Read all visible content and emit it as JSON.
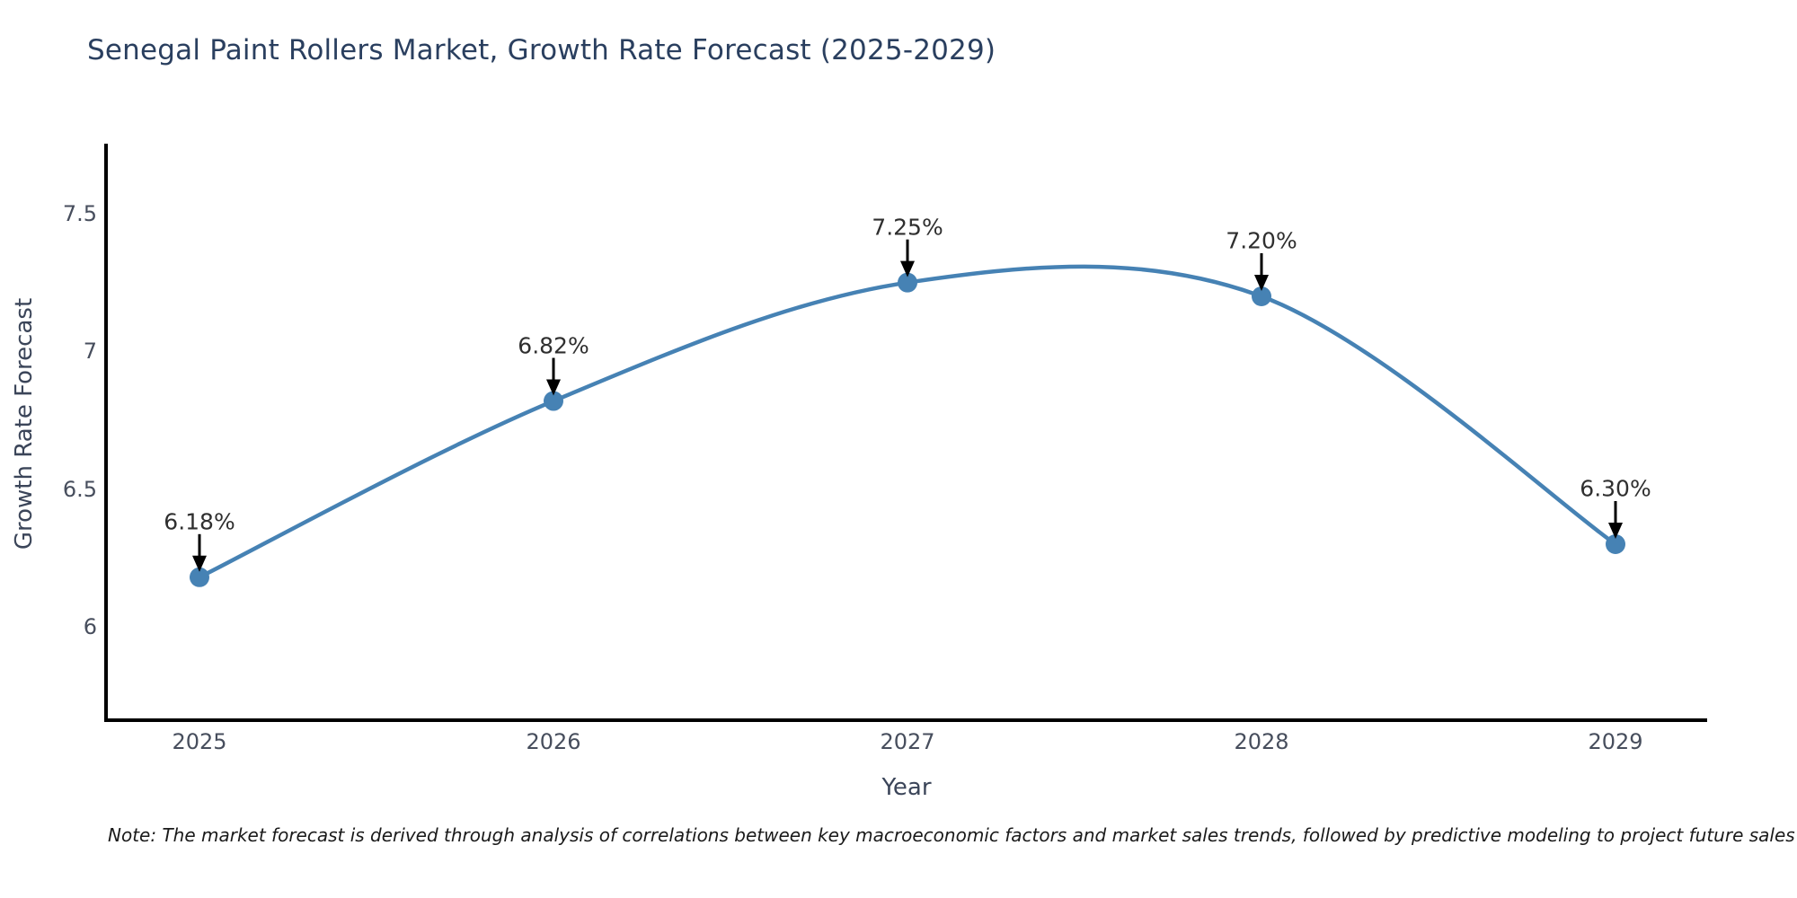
{
  "title": "Senegal Paint Rollers Market, Growth Rate Forecast (2025-2029)",
  "note": "Note: The market forecast is derived through analysis of correlations between key macroeconomic factors and market sales trends, followed by predictive modeling to project future sales",
  "x_axis": {
    "title": "Year",
    "tick_labels": [
      "2025",
      "2026",
      "2027",
      "2028",
      "2029"
    ]
  },
  "y_axis": {
    "title": "Growth Rate Forecast",
    "tick_values": [
      7.5,
      7.0,
      6.5,
      6.0
    ],
    "tick_labels": [
      "7.5",
      "7",
      "6.5",
      "6"
    ]
  },
  "colors": {
    "background": "#ffffff",
    "line": "#4682b4",
    "marker": "#4682b4",
    "arrow": "#000000",
    "spine": "#000000",
    "title_text": "#2a3f5f",
    "tick_text": "#474e5d",
    "annotation_text": "#2f2f2f",
    "note_text": "#1a1a1a"
  },
  "chart_data": {
    "type": "line",
    "line_shape": "spline",
    "markers": true,
    "grid": false,
    "legend": false,
    "title": "Senegal Paint Rollers Market, Growth Rate Forecast (2025-2029)",
    "xlabel": "Year",
    "ylabel": "Growth Rate Forecast",
    "x": [
      2025,
      2026,
      2027,
      2028,
      2029
    ],
    "values": [
      6.18,
      6.82,
      7.25,
      7.2,
      6.3
    ],
    "point_labels": [
      "6.18%",
      "6.82%",
      "7.25%",
      "7.20%",
      "6.30%"
    ],
    "annotation_style": "black-arrow-down-to-point",
    "xlim": [
      2024.74,
      2029.26
    ],
    "ylim": [
      5.66,
      7.75
    ],
    "spines": [
      "left",
      "bottom"
    ]
  }
}
